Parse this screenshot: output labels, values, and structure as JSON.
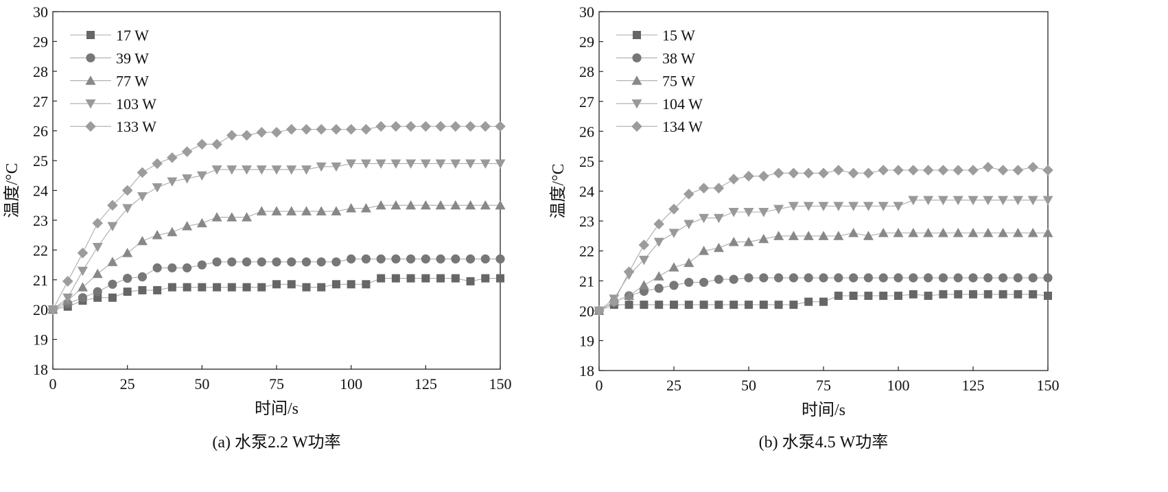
{
  "chart_data": [
    {
      "type": "line",
      "caption": "(a) 水泵2.2 W功率",
      "xlabel": "时间/s",
      "ylabel": "温度/°C",
      "xlim": [
        0,
        150
      ],
      "ylim": [
        18,
        30
      ],
      "xticks": [
        0,
        25,
        50,
        75,
        100,
        125,
        150
      ],
      "yticks": [
        18,
        19,
        20,
        21,
        22,
        23,
        24,
        25,
        26,
        27,
        28,
        29,
        30
      ],
      "legend_position": "top-left",
      "x": [
        0,
        5,
        10,
        15,
        20,
        25,
        30,
        35,
        40,
        45,
        50,
        55,
        60,
        65,
        70,
        75,
        80,
        85,
        90,
        95,
        100,
        105,
        110,
        115,
        120,
        125,
        130,
        135,
        140,
        145,
        150
      ],
      "series": [
        {
          "name": "17 W",
          "marker": "square",
          "color": "#666666",
          "values": [
            20.0,
            20.1,
            20.3,
            20.4,
            20.4,
            20.6,
            20.65,
            20.65,
            20.75,
            20.75,
            20.75,
            20.75,
            20.75,
            20.75,
            20.75,
            20.85,
            20.85,
            20.75,
            20.75,
            20.85,
            20.85,
            20.85,
            21.05,
            21.05,
            21.05,
            21.05,
            21.05,
            21.05,
            20.95,
            21.05,
            21.05
          ]
        },
        {
          "name": "39 W",
          "marker": "circle",
          "color": "#777777",
          "values": [
            20.0,
            20.2,
            20.4,
            20.6,
            20.85,
            21.05,
            21.1,
            21.4,
            21.4,
            21.4,
            21.5,
            21.6,
            21.6,
            21.6,
            21.6,
            21.6,
            21.6,
            21.6,
            21.6,
            21.6,
            21.7,
            21.7,
            21.7,
            21.7,
            21.7,
            21.7,
            21.7,
            21.7,
            21.7,
            21.7,
            21.7
          ]
        },
        {
          "name": "77 W",
          "marker": "triangle-up",
          "color": "#888888",
          "values": [
            20.0,
            20.3,
            20.75,
            21.2,
            21.6,
            21.9,
            22.3,
            22.5,
            22.6,
            22.8,
            22.9,
            23.1,
            23.1,
            23.1,
            23.3,
            23.3,
            23.3,
            23.3,
            23.3,
            23.3,
            23.4,
            23.4,
            23.5,
            23.5,
            23.5,
            23.5,
            23.5,
            23.5,
            23.5,
            23.5,
            23.5
          ]
        },
        {
          "name": "103 W",
          "marker": "triangle-down",
          "color": "#999999",
          "values": [
            20.0,
            20.4,
            21.3,
            22.1,
            22.8,
            23.4,
            23.8,
            24.1,
            24.3,
            24.4,
            24.5,
            24.7,
            24.7,
            24.7,
            24.7,
            24.7,
            24.7,
            24.7,
            24.8,
            24.8,
            24.9,
            24.9,
            24.9,
            24.9,
            24.9,
            24.9,
            24.9,
            24.9,
            24.9,
            24.9,
            24.9
          ]
        },
        {
          "name": "133 W",
          "marker": "diamond",
          "color": "#9c9c9c",
          "values": [
            20.0,
            20.95,
            21.9,
            22.9,
            23.5,
            24.0,
            24.6,
            24.9,
            25.1,
            25.3,
            25.55,
            25.55,
            25.85,
            25.85,
            25.95,
            25.95,
            26.05,
            26.05,
            26.05,
            26.05,
            26.05,
            26.05,
            26.15,
            26.15,
            26.15,
            26.15,
            26.15,
            26.15,
            26.15,
            26.15,
            26.15
          ]
        }
      ]
    },
    {
      "type": "line",
      "caption": "(b) 水泵4.5 W功率",
      "xlabel": "时间/s",
      "ylabel": "温度/°C",
      "xlim": [
        0,
        150
      ],
      "ylim": [
        18,
        30
      ],
      "xticks": [
        0,
        25,
        50,
        75,
        100,
        125,
        150
      ],
      "yticks": [
        18,
        19,
        20,
        21,
        22,
        23,
        24,
        25,
        26,
        27,
        28,
        29,
        30
      ],
      "legend_position": "top-left",
      "x": [
        0,
        5,
        10,
        15,
        20,
        25,
        30,
        35,
        40,
        45,
        50,
        55,
        60,
        65,
        70,
        75,
        80,
        85,
        90,
        95,
        100,
        105,
        110,
        115,
        120,
        125,
        130,
        135,
        140,
        145,
        150
      ],
      "series": [
        {
          "name": "15 W",
          "marker": "square",
          "color": "#666666",
          "values": [
            20.0,
            20.2,
            20.2,
            20.2,
            20.2,
            20.2,
            20.2,
            20.2,
            20.2,
            20.2,
            20.2,
            20.2,
            20.2,
            20.2,
            20.3,
            20.3,
            20.5,
            20.5,
            20.5,
            20.5,
            20.5,
            20.55,
            20.5,
            20.55,
            20.55,
            20.55,
            20.55,
            20.55,
            20.55,
            20.55,
            20.5
          ]
        },
        {
          "name": "38 W",
          "marker": "circle",
          "color": "#777777",
          "values": [
            20.0,
            20.3,
            20.5,
            20.65,
            20.75,
            20.85,
            20.95,
            20.95,
            21.05,
            21.05,
            21.1,
            21.1,
            21.1,
            21.1,
            21.1,
            21.1,
            21.1,
            21.1,
            21.1,
            21.1,
            21.1,
            21.1,
            21.1,
            21.1,
            21.1,
            21.1,
            21.1,
            21.1,
            21.1,
            21.1,
            21.1
          ]
        },
        {
          "name": "75 W",
          "marker": "triangle-up",
          "color": "#888888",
          "values": [
            20.0,
            20.3,
            20.5,
            20.85,
            21.15,
            21.45,
            21.6,
            22.0,
            22.1,
            22.3,
            22.3,
            22.4,
            22.5,
            22.5,
            22.5,
            22.5,
            22.5,
            22.6,
            22.5,
            22.6,
            22.6,
            22.6,
            22.6,
            22.6,
            22.6,
            22.6,
            22.6,
            22.6,
            22.6,
            22.6,
            22.6
          ]
        },
        {
          "name": "104 W",
          "marker": "triangle-down",
          "color": "#999999",
          "values": [
            20.0,
            20.4,
            21.2,
            21.7,
            22.3,
            22.6,
            22.9,
            23.1,
            23.1,
            23.3,
            23.3,
            23.3,
            23.4,
            23.5,
            23.5,
            23.5,
            23.5,
            23.5,
            23.5,
            23.5,
            23.5,
            23.7,
            23.7,
            23.7,
            23.7,
            23.7,
            23.7,
            23.7,
            23.7,
            23.7,
            23.7
          ]
        },
        {
          "name": "134 W",
          "marker": "diamond",
          "color": "#9c9c9c",
          "values": [
            20.0,
            20.3,
            21.3,
            22.2,
            22.9,
            23.4,
            23.9,
            24.1,
            24.1,
            24.4,
            24.5,
            24.5,
            24.6,
            24.6,
            24.6,
            24.6,
            24.7,
            24.6,
            24.6,
            24.7,
            24.7,
            24.7,
            24.7,
            24.7,
            24.7,
            24.7,
            24.8,
            24.7,
            24.7,
            24.8,
            24.7
          ]
        }
      ]
    }
  ]
}
